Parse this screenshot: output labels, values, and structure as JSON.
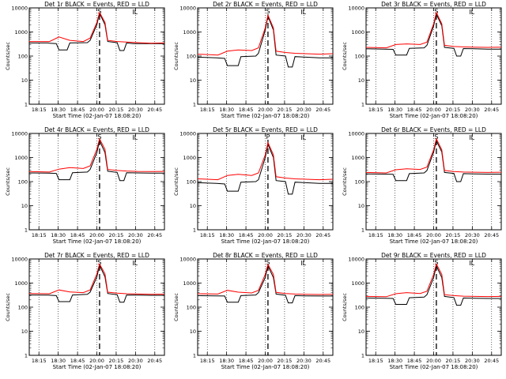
{
  "colors": {
    "events": "#000000",
    "lld": "#ff0000",
    "frame": "#000000",
    "background": "#ffffff"
  },
  "chart_data": [
    {
      "type": "line",
      "title": "Det 1r BLACK = Events, RED = LLD",
      "peak_marker": "S",
      "end_marker": "L",
      "xlabel": "Start Time (02-Jan-07 18:08:20)",
      "ylabel": "Counts/sec",
      "yscale": "log",
      "ylim": [
        1,
        10000
      ],
      "yticks": [
        "1",
        "10",
        "100",
        "1000",
        "10000"
      ],
      "xticks": [
        "18:15",
        "18:30",
        "18:45",
        "20:00",
        "20:15",
        "20:30",
        "20:45"
      ],
      "series": [
        {
          "name": "Events",
          "color": "#000000",
          "x": [
            0,
            0.14,
            0.15,
            0.2,
            0.22,
            0.28,
            0.3,
            0.43,
            0.45,
            0.5,
            0.52,
            0.56,
            0.58,
            0.65,
            0.67,
            0.7,
            0.72,
            0.74,
            0.77,
            0.8,
            0.9,
            1
          ],
          "y": [
            350,
            350,
            340,
            330,
            180,
            180,
            350,
            360,
            450,
            2000,
            6000,
            2000,
            400,
            360,
            170,
            170,
            350,
            340,
            330,
            330,
            330,
            330
          ]
        },
        {
          "name": "LLD",
          "color": "#ff0000",
          "x": [
            0,
            0.15,
            0.22,
            0.3,
            0.4,
            0.45,
            0.5,
            0.52,
            0.56,
            0.58,
            0.65,
            0.72,
            0.8,
            0.9,
            1
          ],
          "y": [
            400,
            400,
            620,
            450,
            400,
            560,
            2500,
            6500,
            2500,
            450,
            400,
            380,
            360,
            340,
            350
          ]
        }
      ]
    },
    {
      "type": "line",
      "title": "Det 2r BLACK = Events, RED = LLD",
      "peak_marker": "S",
      "end_marker": "L",
      "xlabel": "Start Time (02-Jan-07 18:08:20)",
      "ylabel": "Counts/sec",
      "yscale": "log",
      "ylim": [
        1,
        10000
      ],
      "yticks": [
        "1",
        "10",
        "100",
        "1000",
        "10000"
      ],
      "xticks": [
        "18:15",
        "18:30",
        "18:45",
        "20:00",
        "20:15",
        "20:30",
        "20:45"
      ],
      "series": [
        {
          "name": "Events",
          "color": "#000000",
          "x": [
            0,
            0.14,
            0.2,
            0.22,
            0.3,
            0.32,
            0.43,
            0.45,
            0.5,
            0.52,
            0.56,
            0.58,
            0.65,
            0.67,
            0.7,
            0.72,
            0.8,
            0.9,
            1
          ],
          "y": [
            90,
            85,
            80,
            40,
            40,
            95,
            100,
            130,
            1200,
            4500,
            1200,
            110,
            100,
            35,
            35,
            95,
            90,
            85,
            85
          ]
        },
        {
          "name": "LLD",
          "color": "#ff0000",
          "x": [
            0,
            0.15,
            0.22,
            0.3,
            0.4,
            0.45,
            0.5,
            0.52,
            0.56,
            0.58,
            0.65,
            0.72,
            0.8,
            0.9,
            1
          ],
          "y": [
            120,
            110,
            160,
            180,
            170,
            220,
            1500,
            5000,
            1500,
            160,
            140,
            130,
            125,
            120,
            125
          ]
        }
      ]
    },
    {
      "type": "line",
      "title": "Det 3r BLACK = Events, RED = LLD",
      "peak_marker": "S",
      "end_marker": "L",
      "xlabel": "Start Time (02-Jan-07 18:08:20)",
      "ylabel": "Counts/sec",
      "yscale": "log",
      "ylim": [
        1,
        10000
      ],
      "yticks": [
        "1",
        "10",
        "100",
        "1000",
        "10000"
      ],
      "xticks": [
        "18:15",
        "18:30",
        "18:45",
        "20:00",
        "20:15",
        "20:30",
        "20:45"
      ],
      "series": [
        {
          "name": "Events",
          "color": "#000000",
          "x": [
            0,
            0.14,
            0.2,
            0.22,
            0.3,
            0.32,
            0.43,
            0.45,
            0.5,
            0.52,
            0.56,
            0.58,
            0.65,
            0.67,
            0.7,
            0.72,
            0.8,
            0.9,
            1
          ],
          "y": [
            200,
            195,
            190,
            110,
            110,
            210,
            220,
            280,
            1800,
            5500,
            1800,
            230,
            210,
            100,
            100,
            205,
            200,
            195,
            195
          ]
        },
        {
          "name": "LLD",
          "color": "#ff0000",
          "x": [
            0,
            0.15,
            0.22,
            0.3,
            0.4,
            0.45,
            0.5,
            0.52,
            0.56,
            0.58,
            0.65,
            0.72,
            0.8,
            0.9,
            1
          ],
          "y": [
            230,
            220,
            300,
            320,
            300,
            380,
            2200,
            6500,
            2200,
            280,
            250,
            240,
            235,
            230,
            235
          ]
        }
      ]
    },
    {
      "type": "line",
      "title": "Det 4r BLACK = Events, RED = LLD",
      "peak_marker": "S",
      "end_marker": "L",
      "xlabel": "Start Time (02-Jan-07 18:08:20)",
      "ylabel": "Counts/sec",
      "yscale": "log",
      "ylim": [
        1,
        10000
      ],
      "yticks": [
        "1",
        "10",
        "100",
        "1000",
        "10000"
      ],
      "xticks": [
        "18:15",
        "18:30",
        "18:45",
        "20:00",
        "20:15",
        "20:30",
        "20:45"
      ],
      "series": [
        {
          "name": "Events",
          "color": "#000000",
          "x": [
            0,
            0.14,
            0.2,
            0.22,
            0.3,
            0.32,
            0.43,
            0.45,
            0.5,
            0.52,
            0.56,
            0.58,
            0.65,
            0.67,
            0.7,
            0.72,
            0.8,
            0.9,
            1
          ],
          "y": [
            230,
            225,
            220,
            120,
            120,
            235,
            250,
            320,
            1600,
            5000,
            1600,
            270,
            240,
            110,
            110,
            235,
            230,
            225,
            225
          ]
        },
        {
          "name": "LLD",
          "color": "#ff0000",
          "x": [
            0,
            0.15,
            0.22,
            0.3,
            0.4,
            0.45,
            0.5,
            0.52,
            0.56,
            0.58,
            0.65,
            0.72,
            0.8,
            0.9,
            1
          ],
          "y": [
            260,
            250,
            330,
            380,
            350,
            450,
            2200,
            6000,
            2200,
            320,
            290,
            275,
            265,
            260,
            265
          ]
        }
      ]
    },
    {
      "type": "line",
      "title": "Det 5r BLACK = Events, RED = LLD",
      "peak_marker": "P",
      "end_marker": "L",
      "xlabel": "Start Time (02-Jan-07 18:08:20)",
      "ylabel": "Counts/sec",
      "yscale": "log",
      "ylim": [
        1,
        10000
      ],
      "yticks": [
        "1",
        "10",
        "100",
        "1000",
        "10000"
      ],
      "xticks": [
        "18:15",
        "18:30",
        "18:45",
        "20:00",
        "20:15",
        "20:30",
        "20:45"
      ],
      "series": [
        {
          "name": "Events",
          "color": "#000000",
          "x": [
            0,
            0.14,
            0.2,
            0.22,
            0.3,
            0.32,
            0.43,
            0.45,
            0.5,
            0.52,
            0.56,
            0.58,
            0.65,
            0.67,
            0.7,
            0.72,
            0.8,
            0.9,
            1
          ],
          "y": [
            90,
            85,
            80,
            40,
            40,
            95,
            100,
            120,
            1000,
            3500,
            1000,
            110,
            100,
            30,
            30,
            95,
            90,
            85,
            85
          ]
        },
        {
          "name": "LLD",
          "color": "#ff0000",
          "x": [
            0,
            0.15,
            0.22,
            0.3,
            0.4,
            0.45,
            0.5,
            0.52,
            0.56,
            0.58,
            0.65,
            0.72,
            0.8,
            0.9,
            1
          ],
          "y": [
            130,
            120,
            180,
            200,
            180,
            230,
            1300,
            4200,
            1300,
            160,
            140,
            130,
            125,
            120,
            125
          ]
        }
      ]
    },
    {
      "type": "line",
      "title": "Det 6r BLACK = Events, RED = LLD",
      "peak_marker": "S",
      "end_marker": "L",
      "xlabel": "Start Time (02-Jan-07 18:08:20)",
      "ylabel": "Counts/sec",
      "yscale": "log",
      "ylim": [
        1,
        10000
      ],
      "yticks": [
        "1",
        "10",
        "100",
        "1000",
        "10000"
      ],
      "xticks": [
        "18:15",
        "18:30",
        "18:45",
        "20:00",
        "20:15",
        "20:30",
        "20:45"
      ],
      "series": [
        {
          "name": "Events",
          "color": "#000000",
          "x": [
            0,
            0.14,
            0.2,
            0.22,
            0.3,
            0.32,
            0.43,
            0.45,
            0.5,
            0.52,
            0.56,
            0.58,
            0.65,
            0.67,
            0.7,
            0.72,
            0.8,
            0.9,
            1
          ],
          "y": [
            210,
            205,
            200,
            110,
            110,
            215,
            230,
            290,
            1700,
            5000,
            1700,
            240,
            220,
            100,
            100,
            215,
            210,
            205,
            205
          ]
        },
        {
          "name": "LLD",
          "color": "#ff0000",
          "x": [
            0,
            0.15,
            0.22,
            0.3,
            0.4,
            0.45,
            0.5,
            0.52,
            0.56,
            0.58,
            0.65,
            0.72,
            0.8,
            0.9,
            1
          ],
          "y": [
            240,
            230,
            310,
            340,
            320,
            400,
            2100,
            6000,
            2100,
            290,
            260,
            250,
            245,
            240,
            245
          ]
        }
      ]
    },
    {
      "type": "line",
      "title": "Det 7r BLACK = Events, RED = LLD",
      "peak_marker": "S",
      "end_marker": "L",
      "xlabel": "Start Time (02-Jan-07 18:08:20)",
      "ylabel": "Counts/sec",
      "yscale": "log",
      "ylim": [
        1,
        10000
      ],
      "yticks": [
        "1",
        "10",
        "100",
        "1000",
        "10000"
      ],
      "xticks": [
        "18:15",
        "18:30",
        "18:45",
        "20:00",
        "20:15",
        "20:30",
        "20:45"
      ],
      "series": [
        {
          "name": "Events",
          "color": "#000000",
          "x": [
            0,
            0.14,
            0.2,
            0.22,
            0.3,
            0.32,
            0.43,
            0.45,
            0.5,
            0.52,
            0.56,
            0.58,
            0.65,
            0.67,
            0.7,
            0.72,
            0.8,
            0.9,
            1
          ],
          "y": [
            320,
            315,
            300,
            170,
            170,
            320,
            340,
            420,
            1800,
            5500,
            1800,
            370,
            330,
            160,
            160,
            320,
            315,
            310,
            310
          ]
        },
        {
          "name": "LLD",
          "color": "#ff0000",
          "x": [
            0,
            0.15,
            0.22,
            0.3,
            0.4,
            0.45,
            0.5,
            0.52,
            0.56,
            0.58,
            0.65,
            0.72,
            0.8,
            0.9,
            1
          ],
          "y": [
            370,
            360,
            520,
            430,
            400,
            520,
            2400,
            6200,
            2400,
            420,
            380,
            360,
            350,
            340,
            345
          ]
        }
      ]
    },
    {
      "type": "line",
      "title": "Det 8r BLACK = Events, RED = LLD",
      "peak_marker": "S",
      "end_marker": "L",
      "xlabel": "Start Time (02-Jan-07 18:08:20)",
      "ylabel": "Counts/sec",
      "yscale": "log",
      "ylim": [
        1,
        10000
      ],
      "yticks": [
        "1",
        "10",
        "100",
        "1000",
        "10000"
      ],
      "xticks": [
        "18:15",
        "18:30",
        "18:45",
        "20:00",
        "20:15",
        "20:30",
        "20:45"
      ],
      "series": [
        {
          "name": "Events",
          "color": "#000000",
          "x": [
            0,
            0.14,
            0.2,
            0.22,
            0.3,
            0.32,
            0.43,
            0.45,
            0.5,
            0.52,
            0.56,
            0.58,
            0.65,
            0.67,
            0.7,
            0.72,
            0.8,
            0.9,
            1
          ],
          "y": [
            300,
            295,
            290,
            160,
            160,
            300,
            320,
            400,
            1700,
            5200,
            1700,
            350,
            310,
            150,
            150,
            300,
            295,
            290,
            290
          ]
        },
        {
          "name": "LLD",
          "color": "#ff0000",
          "x": [
            0,
            0.15,
            0.22,
            0.3,
            0.4,
            0.45,
            0.5,
            0.52,
            0.56,
            0.58,
            0.65,
            0.72,
            0.8,
            0.9,
            1
          ],
          "y": [
            360,
            350,
            500,
            420,
            390,
            500,
            2300,
            6000,
            2300,
            410,
            370,
            350,
            340,
            335,
            340
          ]
        }
      ]
    },
    {
      "type": "line",
      "title": "Det 9r BLACK = Events, RED = LLD",
      "peak_marker": "S",
      "end_marker": "L",
      "xlabel": "Start Time (02-Jan-07 18:08:20)",
      "ylabel": "Counts/sec",
      "yscale": "log",
      "ylim": [
        1,
        10000
      ],
      "yticks": [
        "1",
        "10",
        "100",
        "1000",
        "10000"
      ],
      "xticks": [
        "18:15",
        "18:30",
        "18:45",
        "20:00",
        "20:15",
        "20:30",
        "20:45"
      ],
      "series": [
        {
          "name": "Events",
          "color": "#000000",
          "x": [
            0,
            0.14,
            0.2,
            0.22,
            0.3,
            0.32,
            0.43,
            0.45,
            0.5,
            0.52,
            0.56,
            0.58,
            0.65,
            0.67,
            0.7,
            0.72,
            0.8,
            0.9,
            1
          ],
          "y": [
            240,
            235,
            230,
            130,
            130,
            245,
            260,
            330,
            1700,
            5200,
            1700,
            280,
            250,
            120,
            120,
            240,
            235,
            230,
            230
          ]
        },
        {
          "name": "LLD",
          "color": "#ff0000",
          "x": [
            0,
            0.15,
            0.22,
            0.3,
            0.4,
            0.45,
            0.5,
            0.52,
            0.56,
            0.58,
            0.65,
            0.72,
            0.8,
            0.9,
            1
          ],
          "y": [
            280,
            270,
            360,
            400,
            370,
            460,
            2300,
            6200,
            2300,
            330,
            300,
            285,
            280,
            275,
            280
          ]
        }
      ]
    }
  ]
}
